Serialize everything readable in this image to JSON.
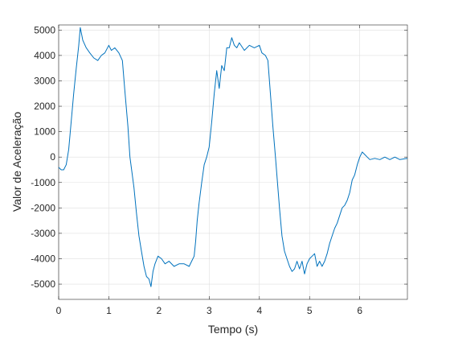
{
  "chart_data": {
    "type": "line",
    "title": "",
    "xlabel": "Tempo (s)",
    "ylabel": "Valor de Aceleração",
    "xlim": [
      0,
      6.95
    ],
    "ylim": [
      -5600,
      5200
    ],
    "xticks": [
      0,
      1,
      2,
      3,
      4,
      5,
      6
    ],
    "yticks": [
      -5000,
      -4000,
      -3000,
      -2000,
      -1000,
      0,
      1000,
      2000,
      3000,
      4000,
      5000
    ],
    "xtick_labels": [
      "0",
      "1",
      "2",
      "3",
      "4",
      "5",
      "6"
    ],
    "ytick_labels": [
      "-5000",
      "-4000",
      "-3000",
      "-2000",
      "-1000",
      "0",
      "1000",
      "2000",
      "3000",
      "4000",
      "5000"
    ],
    "grid": true,
    "line_color": "#0072bd",
    "series": [
      {
        "x": [
          0,
          0.05,
          0.1,
          0.15,
          0.2,
          0.25,
          0.3,
          0.35,
          0.4,
          0.43,
          0.48,
          0.55,
          0.62,
          0.7,
          0.78,
          0.85,
          0.92,
          1.0,
          1.05,
          1.12,
          1.2,
          1.27,
          1.32,
          1.38,
          1.42,
          1.46,
          1.5,
          1.55,
          1.6,
          1.65,
          1.7,
          1.75,
          1.8,
          1.84,
          1.88,
          1.92,
          1.98,
          2.05,
          2.12,
          2.2,
          2.3,
          2.4,
          2.5,
          2.6,
          2.65,
          2.7,
          2.73,
          2.76,
          2.8,
          2.85,
          2.9,
          2.95,
          3.0,
          3.05,
          3.1,
          3.15,
          3.2,
          3.25,
          3.3,
          3.35,
          3.4,
          3.45,
          3.5,
          3.55,
          3.6,
          3.7,
          3.8,
          3.9,
          4.0,
          4.05,
          4.12,
          4.17,
          4.22,
          4.27,
          4.32,
          4.36,
          4.4,
          4.45,
          4.5,
          4.55,
          4.6,
          4.65,
          4.7,
          4.75,
          4.8,
          4.85,
          4.9,
          4.95,
          5.0,
          5.05,
          5.1,
          5.15,
          5.2,
          5.25,
          5.3,
          5.35,
          5.4,
          5.45,
          5.5,
          5.55,
          5.6,
          5.65,
          5.7,
          5.75,
          5.8,
          5.85,
          5.9,
          5.95,
          6.0,
          6.05,
          6.1,
          6.15,
          6.2,
          6.3,
          6.4,
          6.5,
          6.6,
          6.7,
          6.8,
          6.95
        ],
        "y": [
          -400,
          -500,
          -500,
          -300,
          300,
          1400,
          2500,
          3500,
          4400,
          5100,
          4600,
          4300,
          4100,
          3900,
          3800,
          4000,
          4100,
          4400,
          4200,
          4300,
          4100,
          3800,
          2600,
          1200,
          0,
          -600,
          -1200,
          -2200,
          -3100,
          -3700,
          -4300,
          -4700,
          -4800,
          -5100,
          -4500,
          -4200,
          -3900,
          -4000,
          -4200,
          -4100,
          -4300,
          -4200,
          -4200,
          -4300,
          -4100,
          -3900,
          -3300,
          -2500,
          -1800,
          -1000,
          -300,
          0,
          400,
          1400,
          2500,
          3400,
          2700,
          3600,
          3400,
          4300,
          4300,
          4700,
          4400,
          4300,
          4500,
          4200,
          4400,
          4300,
          4400,
          4100,
          4000,
          3800,
          2500,
          1200,
          0,
          -1000,
          -2000,
          -3100,
          -3700,
          -4000,
          -4300,
          -4500,
          -4400,
          -4100,
          -4400,
          -4100,
          -4600,
          -4200,
          -4000,
          -3900,
          -3800,
          -4300,
          -4100,
          -4300,
          -4100,
          -3800,
          -3400,
          -3100,
          -2800,
          -2600,
          -2300,
          -2000,
          -1900,
          -1700,
          -1400,
          -900,
          -700,
          -300,
          0,
          200,
          100,
          0,
          -100,
          -50,
          -100,
          0,
          -100,
          0,
          -100,
          -50
        ]
      }
    ]
  }
}
